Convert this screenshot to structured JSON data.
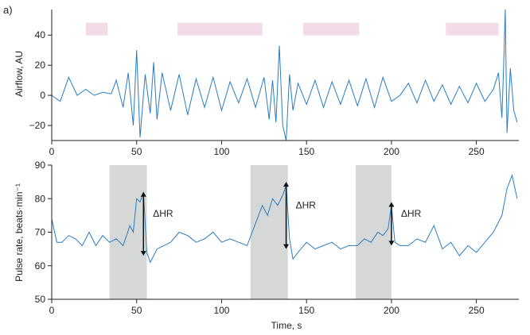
{
  "panel_label": "a)",
  "colors": {
    "line": "#2a7cc0",
    "bar": "#f4dbe9",
    "shade": "#d6d8d8",
    "axis": "#222222"
  },
  "chart_data": [
    {
      "type": "line",
      "ylabel": "Airflow, AU",
      "xlim": [
        0,
        275
      ],
      "ylim": [
        -30,
        57
      ],
      "xticks": [
        0,
        50,
        100,
        150,
        200,
        250
      ],
      "yticks": [
        -20,
        0,
        20,
        40
      ],
      "bars": [
        {
          "x0": 20,
          "x1": 33,
          "y": 44
        },
        {
          "x0": 74,
          "x1": 124,
          "y": 44
        },
        {
          "x0": 148,
          "x1": 181,
          "y": 44
        },
        {
          "x0": 232,
          "x1": 263,
          "y": 44
        }
      ],
      "series": [
        {
          "x": [
            0,
            5,
            10,
            15,
            20,
            25,
            30,
            35,
            38,
            42,
            45,
            48,
            50,
            52,
            55,
            58,
            60,
            62,
            65,
            70,
            75,
            80,
            85,
            90,
            95,
            100,
            105,
            110,
            115,
            120,
            125,
            128,
            130,
            132,
            134,
            136,
            138,
            140,
            142,
            145,
            150,
            155,
            160,
            165,
            170,
            175,
            180,
            185,
            190,
            195,
            200,
            205,
            210,
            215,
            220,
            225,
            230,
            235,
            240,
            245,
            250,
            255,
            260,
            263,
            265,
            266,
            267,
            268,
            270,
            272,
            274
          ],
          "y": [
            0,
            -4,
            12,
            0,
            4,
            0,
            2,
            1,
            10,
            -8,
            15,
            -20,
            30,
            -28,
            14,
            -12,
            22,
            -16,
            15,
            -10,
            14,
            -13,
            11,
            -8,
            12,
            -10,
            9,
            -5,
            11,
            -8,
            12,
            -16,
            10,
            -18,
            33,
            -20,
            -30,
            14,
            -10,
            8,
            -6,
            10,
            -8,
            9,
            -6,
            10,
            -7,
            11,
            -8,
            12,
            -4,
            0,
            8,
            -5,
            10,
            -4,
            7,
            -6,
            6,
            -5,
            8,
            -4,
            4,
            15,
            -15,
            18,
            57,
            -25,
            18,
            -10,
            -18
          ]
        }
      ]
    },
    {
      "type": "line",
      "xlabel": "Time, s",
      "ylabel": "Pulse rate, beats·min⁻¹",
      "xlim": [
        0,
        275
      ],
      "ylim": [
        50,
        90
      ],
      "xticks": [
        0,
        50,
        100,
        150,
        200,
        250
      ],
      "yticks": [
        50,
        60,
        70,
        80,
        90
      ],
      "shaded": [
        [
          34,
          56
        ],
        [
          117,
          139
        ],
        [
          179,
          200
        ]
      ],
      "annotations": [
        {
          "text": "ΔHR",
          "x": 54,
          "y_low": 63,
          "y_high": 82
        },
        {
          "text": "ΔHR",
          "x": 138,
          "y_low": 65,
          "y_high": 85
        },
        {
          "text": "ΔHR",
          "x": 200,
          "y_low": 66,
          "y_high": 79
        }
      ],
      "series": [
        {
          "x": [
            0,
            3,
            6,
            10,
            14,
            18,
            22,
            26,
            30,
            34,
            38,
            42,
            46,
            48,
            50,
            52,
            54,
            56,
            58,
            60,
            62,
            66,
            70,
            75,
            80,
            85,
            90,
            95,
            100,
            105,
            110,
            115,
            118,
            121,
            124,
            127,
            130,
            133,
            136,
            138,
            140,
            142,
            145,
            150,
            155,
            160,
            165,
            170,
            175,
            180,
            184,
            188,
            192,
            195,
            198,
            200,
            202,
            205,
            210,
            215,
            220,
            225,
            230,
            235,
            240,
            245,
            250,
            255,
            260,
            265,
            268,
            271,
            274
          ],
          "y": [
            74,
            67,
            67,
            69,
            68,
            66,
            70,
            66,
            69,
            67,
            68,
            66,
            72,
            70,
            80,
            79,
            82,
            64,
            61,
            63,
            65,
            66,
            67,
            70,
            69,
            67,
            68,
            70,
            67,
            68,
            67,
            66,
            70,
            74,
            78,
            75,
            80,
            78,
            81,
            84,
            68,
            62,
            64,
            67,
            65,
            66,
            67,
            65,
            66,
            66,
            68,
            67,
            70,
            69,
            71,
            78,
            67,
            66,
            66,
            68,
            67,
            72,
            65,
            67,
            63,
            66,
            64,
            67,
            70,
            75,
            83,
            87,
            80
          ]
        }
      ]
    }
  ]
}
